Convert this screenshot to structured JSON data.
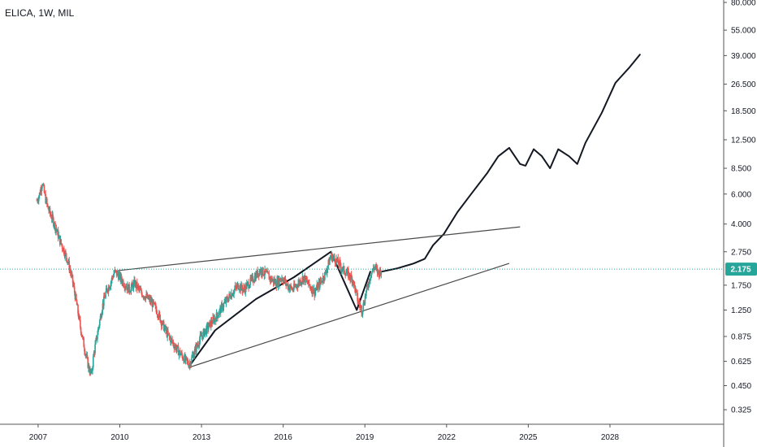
{
  "header": {
    "symbol_line": "ELICA, 1W, MIL"
  },
  "colors": {
    "price_line": "#26a69a",
    "candle_up": "#26a69a",
    "candle_down": "#ef5350",
    "drawing": "#131722",
    "trendline": "#4a4a4a",
    "badge_bg": "#26a69a",
    "axis_line": "#555555"
  },
  "chart_data": {
    "type": "line",
    "symbol": "ELICA",
    "interval": "1W",
    "exchange": "MIL",
    "y_scale": "log",
    "grid": false,
    "ylim": [
      0.25,
      80
    ],
    "xlim": [
      2005.6,
      2033.4
    ],
    "y_ticks": [
      "80.000",
      "55.000",
      "39.000",
      "26.500",
      "18.500",
      "12.500",
      "8.500",
      "6.000",
      "4.000",
      "2.750",
      "1.750",
      "1.250",
      "0.875",
      "0.625",
      "0.450",
      "0.325"
    ],
    "x_ticks": [
      "2007",
      "2010",
      "2013",
      "2016",
      "2019",
      "2022",
      "2025",
      "2028"
    ],
    "last_price": 2.175,
    "last_price_label": "2.175",
    "series": [
      {
        "type": "candles",
        "points": [
          [
            2006.95,
            5.5
          ],
          [
            2007.05,
            6.0
          ],
          [
            2007.15,
            7.0
          ],
          [
            2007.25,
            5.8
          ],
          [
            2007.35,
            5.0
          ],
          [
            2007.5,
            4.4
          ],
          [
            2007.65,
            3.8
          ],
          [
            2007.8,
            3.2
          ],
          [
            2007.95,
            2.8
          ],
          [
            2008.1,
            2.4
          ],
          [
            2008.25,
            1.9
          ],
          [
            2008.4,
            1.4
          ],
          [
            2008.55,
            1.0
          ],
          [
            2008.7,
            0.75
          ],
          [
            2008.85,
            0.58
          ],
          [
            2008.95,
            0.52
          ],
          [
            2009.05,
            0.7
          ],
          [
            2009.2,
            0.95
          ],
          [
            2009.35,
            1.3
          ],
          [
            2009.5,
            1.6
          ],
          [
            2009.65,
            1.8
          ],
          [
            2009.8,
            2.1
          ],
          [
            2009.95,
            2.0
          ],
          [
            2010.15,
            1.8
          ],
          [
            2010.35,
            1.65
          ],
          [
            2010.55,
            1.8
          ],
          [
            2010.75,
            1.6
          ],
          [
            2010.95,
            1.5
          ],
          [
            2011.15,
            1.4
          ],
          [
            2011.35,
            1.25
          ],
          [
            2011.55,
            1.05
          ],
          [
            2011.75,
            0.9
          ],
          [
            2011.95,
            0.8
          ],
          [
            2012.15,
            0.72
          ],
          [
            2012.35,
            0.65
          ],
          [
            2012.55,
            0.6
          ],
          [
            2012.75,
            0.72
          ],
          [
            2012.95,
            0.85
          ],
          [
            2013.15,
            0.95
          ],
          [
            2013.35,
            1.05
          ],
          [
            2013.55,
            1.15
          ],
          [
            2013.75,
            1.3
          ],
          [
            2013.95,
            1.45
          ],
          [
            2014.15,
            1.6
          ],
          [
            2014.35,
            1.75
          ],
          [
            2014.55,
            1.65
          ],
          [
            2014.75,
            1.8
          ],
          [
            2014.95,
            1.95
          ],
          [
            2015.15,
            2.15
          ],
          [
            2015.35,
            2.05
          ],
          [
            2015.55,
            1.9
          ],
          [
            2015.75,
            1.8
          ],
          [
            2015.95,
            1.95
          ],
          [
            2016.15,
            1.75
          ],
          [
            2016.35,
            1.65
          ],
          [
            2016.55,
            1.8
          ],
          [
            2016.75,
            1.95
          ],
          [
            2016.95,
            1.75
          ],
          [
            2017.15,
            1.6
          ],
          [
            2017.35,
            1.8
          ],
          [
            2017.55,
            2.05
          ],
          [
            2017.75,
            2.6
          ],
          [
            2017.95,
            2.45
          ],
          [
            2018.15,
            2.2
          ],
          [
            2018.35,
            2.05
          ],
          [
            2018.55,
            1.9
          ],
          [
            2018.75,
            1.4
          ],
          [
            2018.9,
            1.25
          ],
          [
            2019.05,
            1.6
          ],
          [
            2019.2,
            2.0
          ],
          [
            2019.35,
            2.25
          ],
          [
            2019.5,
            2.05
          ],
          [
            2019.6,
            2.175
          ]
        ]
      },
      {
        "type": "projection",
        "points": [
          [
            2019.6,
            2.1
          ],
          [
            2020.2,
            2.2
          ],
          [
            2020.8,
            2.35
          ],
          [
            2021.2,
            2.5
          ],
          [
            2021.5,
            3.0
          ],
          [
            2021.9,
            3.5
          ],
          [
            2022.4,
            4.7
          ],
          [
            2022.9,
            6.0
          ],
          [
            2023.5,
            8.0
          ],
          [
            2023.9,
            10.0
          ],
          [
            2024.3,
            11.2
          ],
          [
            2024.7,
            9.0
          ],
          [
            2024.9,
            8.8
          ],
          [
            2025.2,
            11.0
          ],
          [
            2025.5,
            10.0
          ],
          [
            2025.8,
            8.5
          ],
          [
            2026.1,
            11.0
          ],
          [
            2026.5,
            10.0
          ],
          [
            2026.8,
            9.0
          ],
          [
            2027.1,
            12.0
          ],
          [
            2027.7,
            18.0
          ],
          [
            2028.2,
            27.0
          ],
          [
            2028.7,
            33.0
          ],
          [
            2029.1,
            39.5
          ]
        ]
      },
      {
        "type": "path-drawing",
        "points": [
          [
            2012.6,
            0.6
          ],
          [
            2013.5,
            0.95
          ],
          [
            2015.0,
            1.45
          ],
          [
            2016.4,
            1.95
          ],
          [
            2017.75,
            2.75
          ],
          [
            2018.7,
            1.25
          ],
          [
            2019.2,
            2.1
          ]
        ]
      },
      {
        "type": "trendline",
        "name": "upper",
        "points": [
          [
            2009.8,
            2.12
          ],
          [
            2024.7,
            3.85
          ]
        ]
      },
      {
        "type": "trendline",
        "name": "lower",
        "points": [
          [
            2012.6,
            0.58
          ],
          [
            2024.3,
            2.35
          ]
        ]
      }
    ]
  }
}
